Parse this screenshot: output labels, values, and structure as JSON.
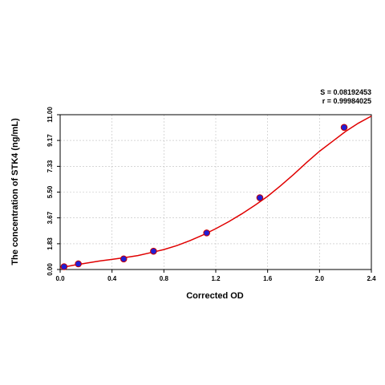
{
  "chart_data": {
    "type": "scatter",
    "title": "",
    "xlabel": "Corrected OD",
    "ylabel": "The concentration of STK4 (ng/mL)",
    "xlim": [
      0.0,
      2.4
    ],
    "ylim": [
      0.0,
      11.0
    ],
    "x_ticks": [
      "0.0",
      "0.4",
      "0.8",
      "1.2",
      "1.6",
      "2.0",
      "2.4"
    ],
    "y_ticks": [
      "0.00",
      "1.83",
      "3.67",
      "5.50",
      "7.33",
      "9.17",
      "11.00"
    ],
    "grid": true,
    "fit_stats": {
      "s": "S = 0.08192453",
      "r": "r = 0.99984025"
    },
    "series": [
      {
        "points": [
          {
            "x": 0.03,
            "y": 0.2
          },
          {
            "x": 0.14,
            "y": 0.4
          },
          {
            "x": 0.49,
            "y": 0.75
          },
          {
            "x": 0.72,
            "y": 1.3
          },
          {
            "x": 1.13,
            "y": 2.6
          },
          {
            "x": 1.54,
            "y": 5.1
          },
          {
            "x": 2.19,
            "y": 10.1
          }
        ]
      }
    ],
    "fit_curve": {
      "x": [
        0.0,
        0.1,
        0.2,
        0.3,
        0.4,
        0.5,
        0.6,
        0.7,
        0.8,
        0.9,
        1.0,
        1.1,
        1.2,
        1.3,
        1.4,
        1.5,
        1.6,
        1.7,
        1.8,
        1.9,
        2.0,
        2.1,
        2.2,
        2.3,
        2.4
      ],
      "y": [
        0.12,
        0.3,
        0.45,
        0.6,
        0.72,
        0.85,
        0.99,
        1.2,
        1.42,
        1.7,
        2.05,
        2.45,
        2.9,
        3.4,
        3.95,
        4.55,
        5.2,
        5.95,
        6.75,
        7.6,
        8.4,
        9.1,
        9.8,
        10.4,
        10.9
      ]
    },
    "colors": {
      "point_fill": "#1f1fd6",
      "point_edge": "#cc0000",
      "curve": "#e00000",
      "grid": "#bfbfbf",
      "axis": "#000000"
    }
  }
}
